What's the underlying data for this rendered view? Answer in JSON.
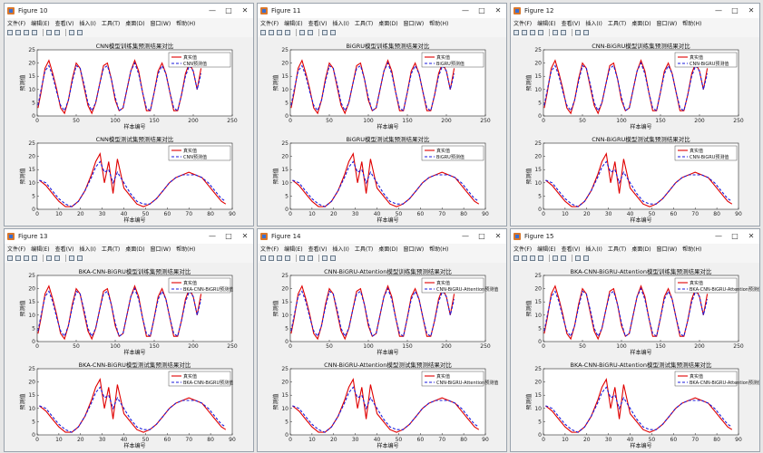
{
  "menu": [
    "文件(F)",
    "编辑(E)",
    "查看(V)",
    "插入(I)",
    "工具(T)",
    "桌面(D)",
    "窗口(W)",
    "帮助(H)"
  ],
  "window_buttons": [
    "—",
    "□",
    "✕"
  ],
  "windows": [
    {
      "title": "Figure 10",
      "model": "CNN",
      "legend_pred": "CNN预测值",
      "train_title": "CNN模型训练集预测结果对比",
      "test_title": "CNN模型测试集预测结果对比"
    },
    {
      "title": "Figure 11",
      "model": "BiGRU",
      "legend_pred": "BiGRU预测值",
      "train_title": "BiGRU模型训练集预测结果对比",
      "test_title": "BiGRU模型测试集预测结果对比"
    },
    {
      "title": "Figure 12",
      "model": "CNN-BiGRU",
      "legend_pred": "CNN-BiGRU预测值",
      "train_title": "CNN-BiGRU模型训练集预测结果对比",
      "test_title": "CNN-BiGRU模型测试集预测结果对比"
    },
    {
      "title": "Figure 13",
      "model": "BKA-CNN-BiGRU",
      "legend_pred": "BKA-CNN-BiGRU预测值",
      "train_title": "BKA-CNN-BiGRU模型训练集预测结果对比",
      "test_title": "BKA-CNN-BiGRU模型测试集预测结果对比"
    },
    {
      "title": "Figure 14",
      "model": "CNN-BiGRU-Attention",
      "legend_pred": "CNN-BiGRU-Attention预测值",
      "train_title": "CNN-BiGRU-Attention模型训练集预测结果对比",
      "test_title": "CNN-BiGRU-Attention模型测试集预测结果对比"
    },
    {
      "title": "Figure 15",
      "model": "BKA-CNN-BiGRU-Attention",
      "legend_pred": "BKA-CNN-BiGRU-Attention预测值",
      "train_title": "BKA-CNN-BiGRU-Attention模型训练集预测结果对比",
      "test_title": "BKA-CNN-BiGRU-Attention模型测试集预测结果对比"
    }
  ],
  "legend_true": "真实值",
  "xlabel": "样本编号",
  "ylabel": "预测值",
  "colors": {
    "true": "#e00000",
    "pred": "#1a1adc"
  },
  "chart_data": {
    "type": "line",
    "train": {
      "xlim": [
        0,
        250
      ],
      "ylim": [
        0,
        25
      ],
      "xticks": [
        0,
        50,
        100,
        150,
        200,
        250
      ],
      "yticks": [
        0,
        5,
        10,
        15,
        20,
        25
      ],
      "x": [
        1,
        5,
        10,
        15,
        20,
        25,
        30,
        35,
        40,
        45,
        50,
        55,
        60,
        65,
        70,
        75,
        80,
        85,
        90,
        95,
        100,
        105,
        110,
        115,
        120,
        125,
        130,
        135,
        140,
        145,
        150,
        155,
        160,
        165,
        170,
        175,
        180,
        185,
        190,
        195,
        200,
        205,
        210
      ],
      "true": [
        3,
        9,
        18,
        21,
        16,
        10,
        3,
        1,
        6,
        14,
        20,
        18,
        11,
        4,
        1,
        5,
        12,
        19,
        20,
        14,
        6,
        2,
        3,
        10,
        17,
        21,
        17,
        9,
        2,
        2,
        9,
        17,
        20,
        16,
        9,
        2,
        2,
        8,
        16,
        20,
        17,
        10,
        18
      ],
      "pred": [
        4,
        10,
        17,
        19,
        15,
        9,
        4,
        2,
        6,
        13,
        19,
        18,
        12,
        5,
        2,
        5,
        12,
        18,
        19,
        14,
        7,
        2,
        3,
        10,
        17,
        20,
        16,
        9,
        3,
        2,
        9,
        16,
        19,
        16,
        9,
        3,
        2,
        8,
        15,
        19,
        17,
        10,
        16
      ]
    },
    "test": {
      "xlim": [
        0,
        90
      ],
      "ylim": [
        0,
        25
      ],
      "xticks": [
        0,
        10,
        20,
        30,
        40,
        50,
        60,
        70,
        80,
        90
      ],
      "yticks": [
        0,
        5,
        10,
        15,
        20,
        25
      ],
      "x": [
        1,
        4,
        7,
        10,
        13,
        16,
        19,
        22,
        25,
        27,
        29,
        31,
        33,
        35,
        37,
        40,
        43,
        46,
        49,
        52,
        55,
        58,
        61,
        64,
        67,
        70,
        73,
        76,
        79,
        82,
        85,
        87
      ],
      "true": [
        11,
        9,
        6,
        3,
        1,
        1,
        3,
        7,
        13,
        18,
        21,
        10,
        18,
        6,
        19,
        8,
        5,
        2,
        1,
        2,
        4,
        7,
        10,
        12,
        13,
        14,
        13,
        12,
        9,
        6,
        3,
        2
      ],
      "pred": [
        11,
        10,
        7,
        4,
        2,
        1,
        3,
        7,
        12,
        16,
        18,
        14,
        15,
        10,
        14,
        10,
        6,
        3,
        2,
        2,
        4,
        7,
        10,
        12,
        13,
        13,
        13,
        12,
        10,
        7,
        4,
        3
      ]
    }
  }
}
